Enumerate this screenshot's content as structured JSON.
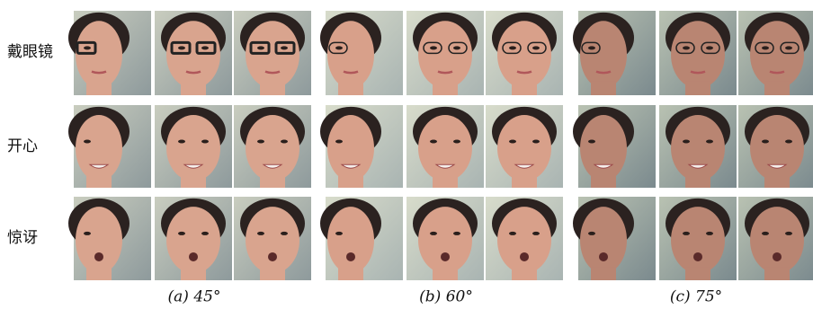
{
  "row_labels": [
    "戴眼镜",
    "开心",
    "惊讶"
  ],
  "captions": [
    "(a) 45°",
    "(b) 60°",
    "(c) 75°"
  ]
}
